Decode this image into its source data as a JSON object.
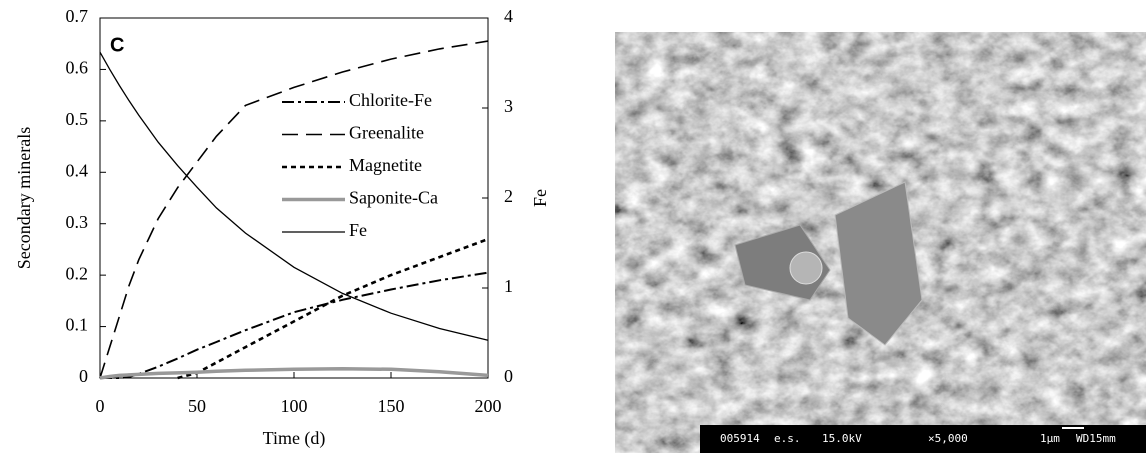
{
  "chart_data": {
    "type": "line",
    "panel_label": "C",
    "xlabel": "Time (d)",
    "ylabel": "Secondary minerals",
    "y2label": "Fe",
    "x": [
      0,
      5,
      10,
      15,
      20,
      25,
      30,
      40,
      50,
      60,
      75,
      100,
      125,
      150,
      175,
      200
    ],
    "xlim": [
      0,
      200
    ],
    "xticks": [
      0,
      50,
      100,
      150,
      200
    ],
    "ylim": [
      0,
      0.7
    ],
    "yticks": [
      0,
      0.1,
      0.2,
      0.3,
      0.4,
      0.5,
      0.6,
      0.7
    ],
    "y2lim": [
      0,
      4
    ],
    "y2ticks": [
      0,
      1,
      2,
      3,
      4
    ],
    "series": [
      {
        "name": "Chlorite-Fe",
        "color": "#000000",
        "style": "dash-dot",
        "values": [
          0,
          0,
          0,
          0.002,
          0.008,
          0.015,
          0.022,
          0.038,
          0.055,
          0.07,
          0.093,
          0.128,
          0.152,
          0.172,
          0.19,
          0.205
        ]
      },
      {
        "name": "Greenalite",
        "color": "#000000",
        "style": "long-dash",
        "values": [
          0,
          0.06,
          0.12,
          0.18,
          0.23,
          0.27,
          0.31,
          0.37,
          0.42,
          0.47,
          0.53,
          0.565,
          0.595,
          0.62,
          0.64,
          0.655
        ]
      },
      {
        "name": "Magnetite",
        "color": "#000000",
        "style": "short-dash",
        "values": [
          null,
          null,
          null,
          null,
          null,
          null,
          null,
          0,
          0.01,
          0.03,
          0.06,
          0.11,
          0.16,
          0.2,
          0.235,
          0.27
        ]
      },
      {
        "name": "Saponite-Ca",
        "color": "#999999",
        "style": "thick",
        "values": [
          0,
          0.003,
          0.005,
          0.006,
          0.007,
          0.008,
          0.009,
          0.01,
          0.011,
          0.013,
          0.015,
          0.017,
          0.018,
          0.017,
          0.012,
          0.005
        ]
      },
      {
        "name": "Fe",
        "color": "#000000",
        "style": "solid",
        "axis": "y2",
        "values": [
          3.62,
          3.43,
          3.25,
          3.08,
          2.92,
          2.77,
          2.62,
          2.36,
          2.12,
          1.89,
          1.61,
          1.23,
          0.94,
          0.72,
          0.55,
          0.42
        ]
      }
    ]
  },
  "micrograph": {
    "caption": [
      "005914",
      "e.s.",
      "15.0kV",
      "×5,000",
      "1µm",
      "WD15mm"
    ]
  }
}
